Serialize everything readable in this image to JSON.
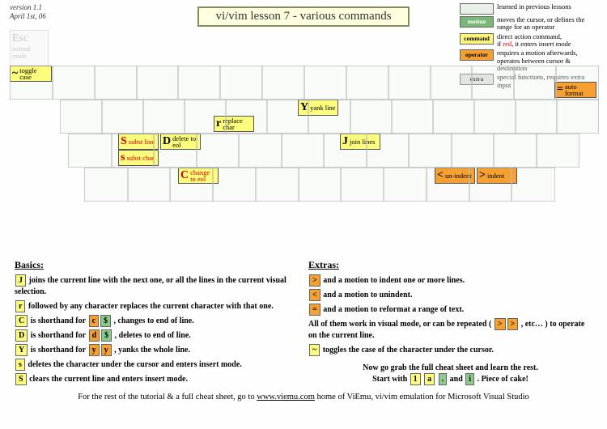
{
  "meta": {
    "version": "version 1.1",
    "date": "April 1st, 06"
  },
  "title": "vi/vim lesson 7 - various commands",
  "legend": {
    "prev": "learned in previous lessons",
    "motion": "moves the cursor, or defines the range for an operator",
    "command": "direct action command,",
    "command2": "if red, it enters insert mode",
    "operator": "requires a motion afterwards, operates between cursor & destination",
    "extra": "special functions, requires extra input",
    "k_motion": "motion",
    "k_command": "command",
    "k_operator": "operator",
    "k_extra": "extra"
  },
  "keys": {
    "toggle_case": {
      "ch": "~",
      "label": "toggle case"
    },
    "auto_format": {
      "ch": "=",
      "label": "auto format"
    },
    "replace_char": {
      "ch": "r",
      "label": "replace char"
    },
    "yank_line": {
      "ch": "Y",
      "label": "yank line"
    },
    "subst_line": {
      "ch": "S",
      "label": "subst line"
    },
    "subst_char": {
      "ch": "s",
      "label": "subst char"
    },
    "delete_eol": {
      "ch": "D",
      "label": "delete to eol"
    },
    "join_lines": {
      "ch": "J",
      "label": "join lines"
    },
    "change_eol": {
      "ch": "C",
      "label": "change to eol"
    },
    "unindent": {
      "ch": "<",
      "label": "un-indent"
    },
    "indent": {
      "ch": ">",
      "label": "indent"
    }
  },
  "basics": {
    "heading": "Basics:",
    "p1a": "joins the current line with the next one, or all the lines in the current visual selection.",
    "p2a": "followed by any character replaces the current character with that one.",
    "p3": "is shorthand for",
    "p3b": ", changes to end of line.",
    "p4": "is shorthand for",
    "p4b": ", deletes to end of line.",
    "p5": "is shorthand for",
    "p5b": ", yanks the whole line.",
    "p6": "deletes the character under the cursor and enters insert mode.",
    "p7": "clears the current line and enters insert mode."
  },
  "extras": {
    "heading": "Extras:",
    "p1": "and a motion to indent one or more lines.",
    "p2": "and a motion to unindent.",
    "p3": "and a motion to reformat a range of text.",
    "p4": "All of them work in visual mode, or can be repeated (",
    "p4b": ", etc… ) to operate on the current line.",
    "p5": "toggles the case of the character under the cursor.",
    "p6": "Now go grab the full cheat sheet and learn the rest.",
    "p7a": "Start with",
    "p7b": "and",
    "p7c": ".  Piece of cake!"
  },
  "footer": {
    "t1": "For the rest of the tutorial & a full cheat sheet, go to ",
    "url": "www.viemu.com",
    "t2": " home of ViEmu, vi/vim emulation for Microsoft Visual Studio"
  }
}
